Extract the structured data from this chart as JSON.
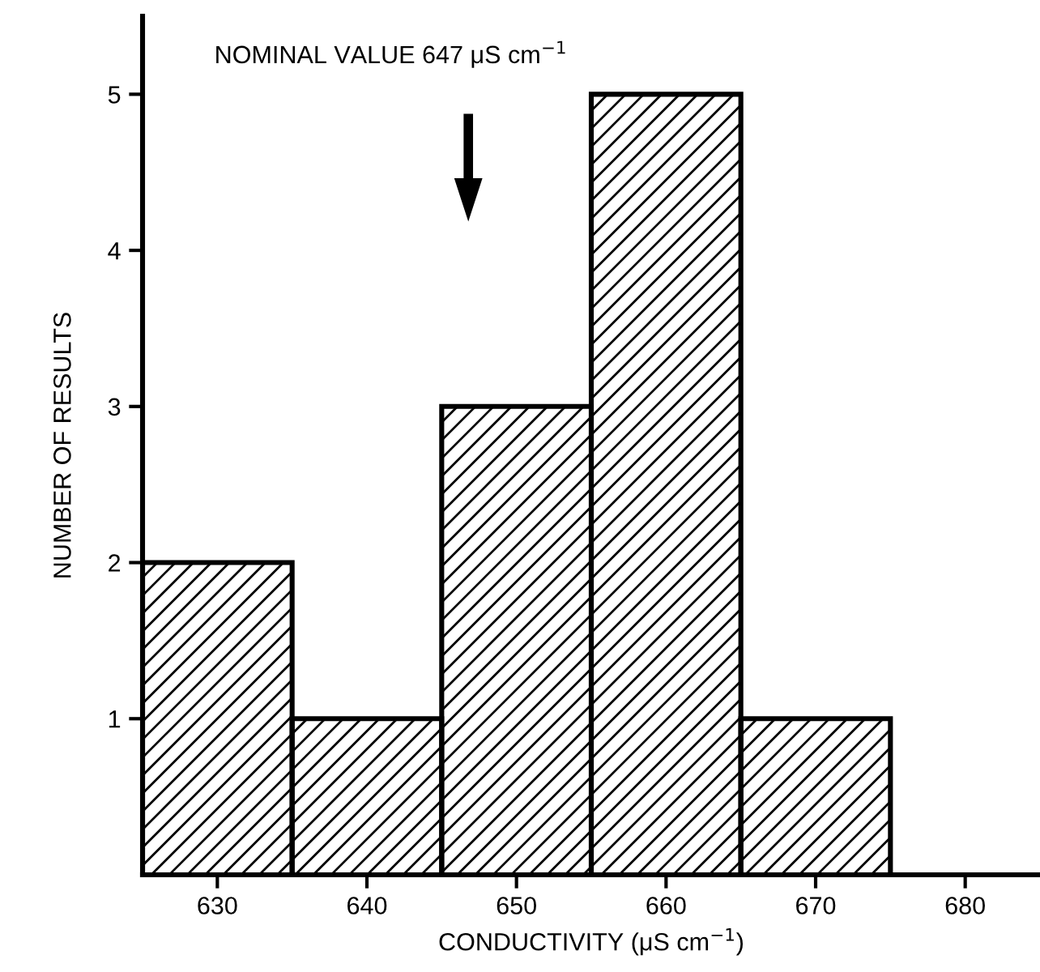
{
  "chart_data": {
    "type": "histogram",
    "xlabel": "CONDUCTIVITY (μS cm$^{−1}$)",
    "ylabel": "NUMBER OF RESULTS",
    "bins": [
      625,
      635,
      645,
      655,
      665,
      675
    ],
    "values": [
      2,
      1,
      3,
      5,
      1
    ],
    "xlim": [
      625,
      685
    ],
    "xticks": [
      630,
      640,
      650,
      660,
      670,
      680
    ],
    "ylim": [
      0,
      5.5
    ],
    "yticks": [
      1,
      2,
      3,
      4,
      5
    ],
    "grid": false,
    "annotations": [
      "NOMINAL VALUE 647 μS cm$^{−1}$"
    ]
  }
}
